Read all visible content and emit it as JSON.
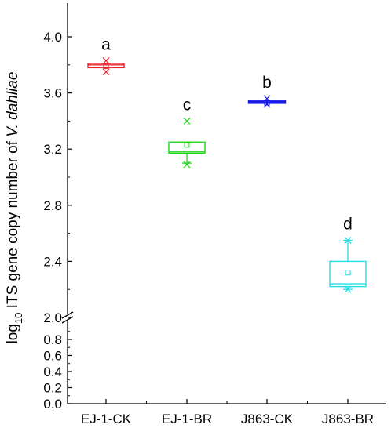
{
  "chart_data": {
    "type": "box",
    "ylabel_prefix": "log",
    "ylabel_subscript": "10",
    "ylabel_main": " ITS gene copy number of ",
    "ylabel_italic": "V. dahliae",
    "axis_break": true,
    "lower_ylim": [
      0,
      1.0
    ],
    "lower_ticks": [
      "0.0",
      "0.2",
      "0.4",
      "0.6",
      "0.8"
    ],
    "lower_tick_values": [
      0.0,
      0.2,
      0.4,
      0.6,
      0.8
    ],
    "upper_ylim": [
      2.0,
      4.2
    ],
    "upper_ticks": [
      "2.0",
      "2.4",
      "2.8",
      "3.2",
      "3.6",
      "4.0"
    ],
    "upper_tick_values": [
      2.0,
      2.4,
      2.8,
      3.2,
      3.6,
      4.0
    ],
    "categories": [
      "EJ-1-CK",
      "EJ-1-BR",
      "J863-CK",
      "J863-BR"
    ],
    "boxes": [
      {
        "category": "EJ-1-CK",
        "color": "#e8262b",
        "q1": 3.78,
        "median": 3.8,
        "q3": 3.81,
        "mean": 3.79,
        "whisker_low": 3.78,
        "whisker_high": 3.81,
        "outliers": [
          3.83,
          3.75
        ],
        "letter": "a"
      },
      {
        "category": "EJ-1-BR",
        "color": "#1ed81e",
        "q1": 3.17,
        "median": 3.18,
        "q3": 3.25,
        "mean": 3.23,
        "whisker_low": 3.1,
        "whisker_high": 3.25,
        "outliers": [
          3.4,
          3.09
        ],
        "letter": "c"
      },
      {
        "category": "J863-CK",
        "color": "#1a1ae6",
        "q1": 3.53,
        "median": 3.54,
        "q3": 3.54,
        "mean": 3.53,
        "whisker_low": 3.53,
        "whisker_high": 3.54,
        "outliers": [
          3.56,
          3.52
        ],
        "letter": "b"
      },
      {
        "category": "J863-BR",
        "color": "#22dfe8",
        "q1": 2.22,
        "median": 2.24,
        "q3": 2.4,
        "mean": 2.32,
        "whisker_low": 2.2,
        "whisker_high": 2.55,
        "outliers": [
          2.55,
          2.2
        ],
        "letter": "d"
      }
    ]
  }
}
